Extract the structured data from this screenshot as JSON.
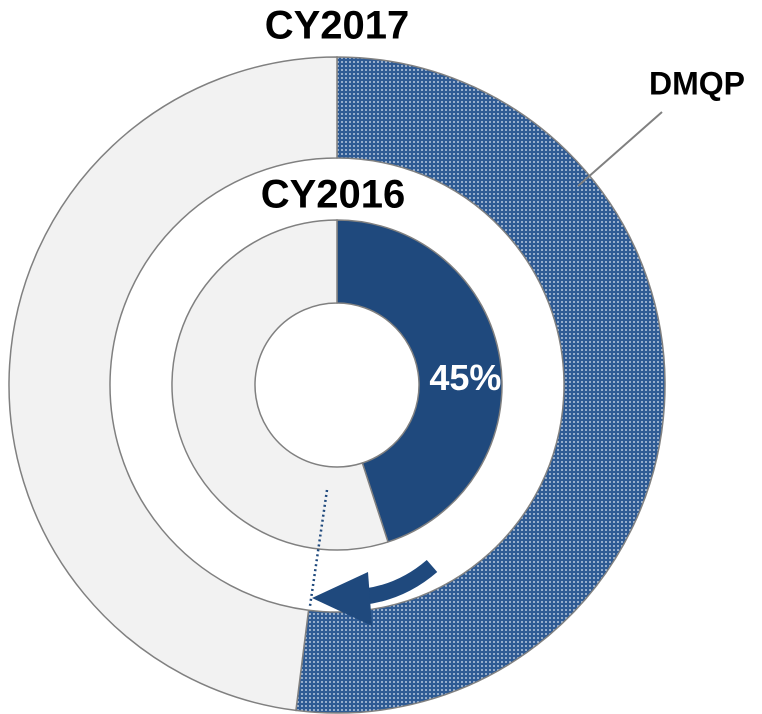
{
  "chart_data": {
    "type": "donut",
    "categories": [
      "DMQP",
      null
    ],
    "series": [
      {
        "name": "CY2016",
        "colors": [
          "#1f497d",
          "#f2f2f2"
        ],
        "values": [
          45,
          55
        ],
        "value_labels": [
          "45%",
          null
        ]
      },
      {
        "name": "CY2017",
        "colors": [
          "pattern",
          "#f2f2f2"
        ],
        "values": [
          52,
          48
        ]
      }
    ]
  }
}
